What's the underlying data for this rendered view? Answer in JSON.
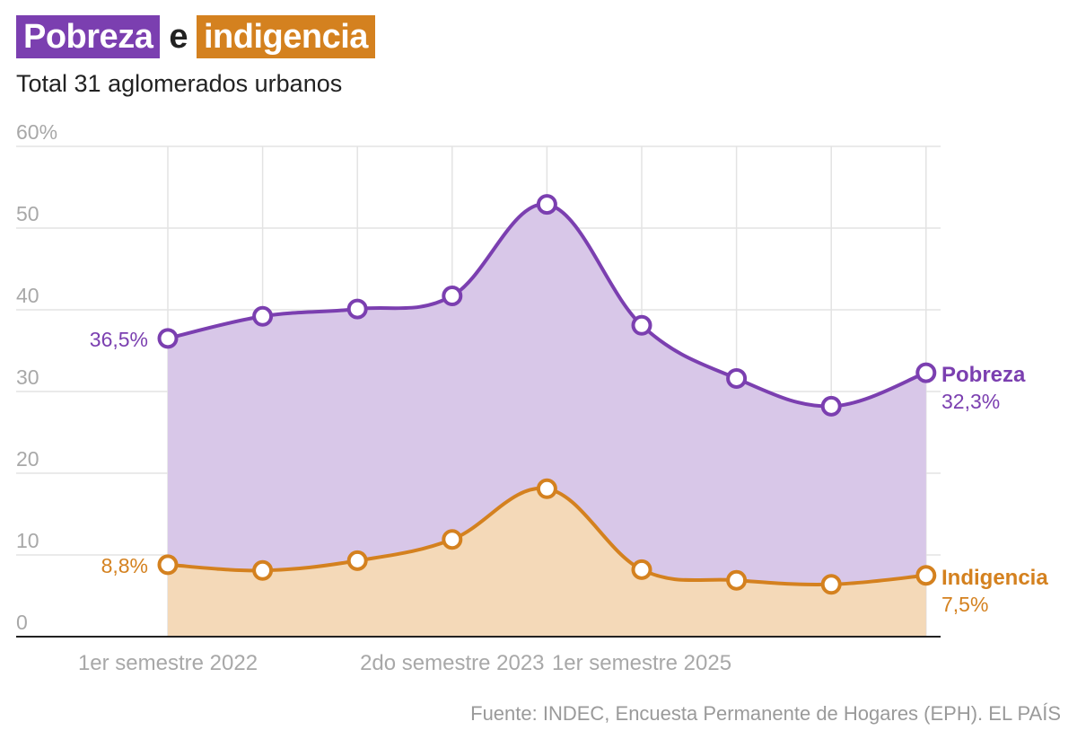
{
  "header": {
    "title_part1": "Pobreza",
    "title_connector": "e",
    "title_part2": "indigencia",
    "subtitle": "Total 31 aglomerados urbanos"
  },
  "source": "Fuente: INDEC, Encuesta Permanente de Hogares (EPH). EL PAÍS",
  "colors": {
    "pobreza": "#7b3fb0",
    "pobreza_fill": "#d8c7e8",
    "indigencia": "#d4811f",
    "indigencia_fill": "#f4d9b8",
    "grid": "#e3e3e3",
    "axis": "#222222"
  },
  "chart_data": {
    "type": "area",
    "x_count": 9,
    "x_tick_labels": [
      {
        "index": 0,
        "label": "1er semestre 2022"
      },
      {
        "index": 3,
        "label": "2do semestre 2023"
      },
      {
        "index": 5,
        "label": "1er semestre 2025"
      }
    ],
    "y_ticks": [
      "60%",
      "50",
      "40",
      "30",
      "20",
      "10",
      "0"
    ],
    "ylim": [
      0,
      60
    ],
    "grid": true,
    "series": [
      {
        "name": "Pobreza",
        "values": [
          36.5,
          39.2,
          40.1,
          41.7,
          52.9,
          38.1,
          31.6,
          28.2,
          32.3
        ],
        "start_label": "36,5%",
        "end_label": "32,3%"
      },
      {
        "name": "Indigencia",
        "values": [
          8.8,
          8.1,
          9.3,
          11.9,
          18.1,
          8.2,
          6.9,
          6.4,
          7.5
        ],
        "start_label": "8,8%",
        "end_label": "7,5%"
      }
    ]
  }
}
